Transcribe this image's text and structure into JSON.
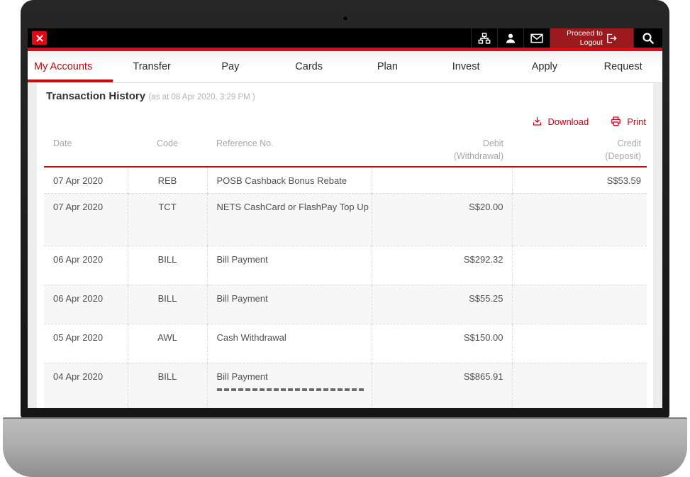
{
  "topbar": {
    "logout_button": {
      "line1": "Proceed to",
      "line2": "Logout"
    },
    "icon_names": [
      "close-icon",
      "sitemap-icon",
      "user-icon",
      "mail-icon",
      "logout-icon",
      "search-icon"
    ]
  },
  "nav": {
    "tabs": [
      {
        "label": "My Accounts",
        "active": true
      },
      {
        "label": "Transfer",
        "active": false
      },
      {
        "label": "Pay",
        "active": false
      },
      {
        "label": "Cards",
        "active": false
      },
      {
        "label": "Plan",
        "active": false
      },
      {
        "label": "Invest",
        "active": false
      },
      {
        "label": "Apply",
        "active": false
      },
      {
        "label": "Request",
        "active": false
      }
    ]
  },
  "content": {
    "title": "Transaction History",
    "timestamp_note": "(as at 08 Apr 2020, 3:29 PM )",
    "download_label": "Download",
    "print_label": "Print"
  },
  "table": {
    "headers": {
      "date": "Date",
      "code": "Code",
      "reference": "Reference No.",
      "debit": "Debit",
      "debit_sub": "(Withdrawal)",
      "credit": "Credit",
      "credit_sub": "(Deposit)"
    },
    "rows": [
      {
        "date": "07 Apr 2020",
        "code": "REB",
        "reference": "POSB Cashback Bonus Rebate",
        "debit": "",
        "credit": "S$53.59"
      },
      {
        "date": "07 Apr 2020",
        "code": "TCT",
        "reference": "NETS CashCard or FlashPay Top Up",
        "debit": "S$20.00",
        "credit": ""
      },
      {
        "date": "06 Apr 2020",
        "code": "BILL",
        "reference": "Bill Payment",
        "debit": "S$292.32",
        "credit": ""
      },
      {
        "date": "06 Apr 2020",
        "code": "BILL",
        "reference": "Bill Payment",
        "debit": "S$55.25",
        "credit": ""
      },
      {
        "date": "05 Apr 2020",
        "code": "AWL",
        "reference": "Cash Withdrawal",
        "debit": "S$150.00",
        "credit": ""
      },
      {
        "date": "04 Apr 2020",
        "code": "BILL",
        "reference": "Bill Payment",
        "debit": "S$865.91",
        "credit": ""
      }
    ]
  },
  "colors": {
    "accent_red": "#e30613",
    "logout_red": "#9c191d",
    "link_red": "#d0021b",
    "row_alt": "#f7f7f7"
  }
}
